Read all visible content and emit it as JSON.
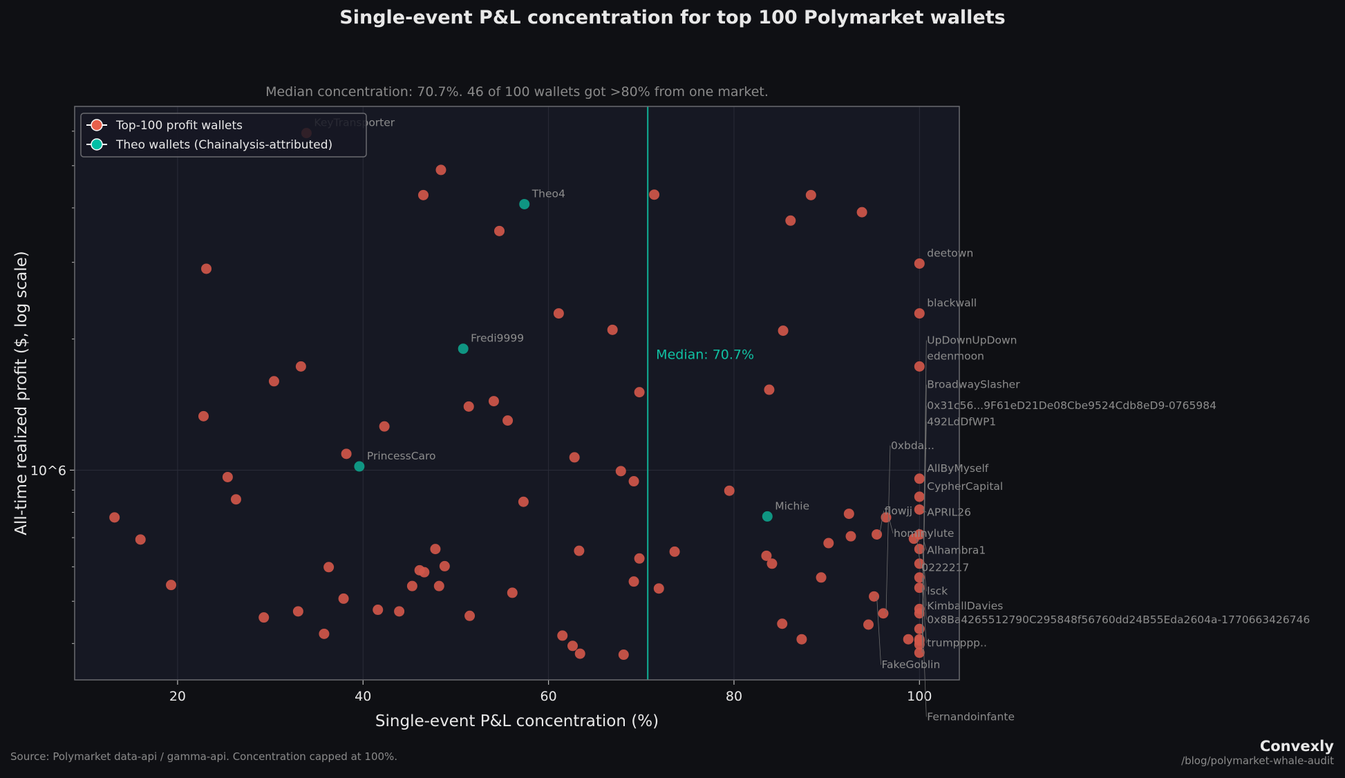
{
  "chart_data": {
    "type": "scatter",
    "title": "Single-event P&L concentration for top 100 Polymarket wallets",
    "subtitle": "Median concentration: 70.7%. 46 of 100 wallets got >80% from one market.",
    "xlabel": "Single-event P&L concentration (%)",
    "ylabel": "All-time realized profit ($, log scale)",
    "xlim": [
      8.9,
      104.3
    ],
    "ylim": [
      330000,
      6840000
    ],
    "yscale": "log",
    "x_ticks": [
      20,
      40,
      60,
      80,
      100
    ],
    "y_ticks": [
      {
        "value": 1000000,
        "label": "10^6"
      }
    ],
    "grid": true,
    "legend_position": "top-left",
    "median": {
      "value": 70.7,
      "label": "Median: 70.7%",
      "color": "#10a58e"
    },
    "colors": {
      "top100": "#d0574a",
      "theo": "#0fa18b",
      "background": "#0f1014",
      "axes_bg": "#161823"
    },
    "series": [
      {
        "name": "Top-100 profit wallets",
        "points": [
          {
            "x": 33.9,
            "y": 5940000,
            "label": "KeyTransporter"
          },
          {
            "x": 48.4,
            "y": 4890000
          },
          {
            "x": 46.5,
            "y": 4280000
          },
          {
            "x": 71.4,
            "y": 4290000
          },
          {
            "x": 88.3,
            "y": 4280000
          },
          {
            "x": 93.8,
            "y": 3910000
          },
          {
            "x": 86.1,
            "y": 3740000
          },
          {
            "x": 54.7,
            "y": 3540000
          },
          {
            "x": 23.1,
            "y": 2900000
          },
          {
            "x": 100,
            "y": 2980000,
            "label": "deetown"
          },
          {
            "x": 61.1,
            "y": 2290000
          },
          {
            "x": 66.9,
            "y": 2100000
          },
          {
            "x": 85.3,
            "y": 2090000
          },
          {
            "x": 100,
            "y": 2290000,
            "label": "blackwall"
          },
          {
            "x": 33.3,
            "y": 1730000
          },
          {
            "x": 30.4,
            "y": 1600000
          },
          {
            "x": 100,
            "y": 1730000,
            "label": "edenmoon"
          },
          {
            "x": 69.8,
            "y": 1510000
          },
          {
            "x": 83.8,
            "y": 1530000
          },
          {
            "x": 54.1,
            "y": 1440000
          },
          {
            "x": 51.4,
            "y": 1400000
          },
          {
            "x": 22.8,
            "y": 1330000
          },
          {
            "x": 55.6,
            "y": 1300000
          },
          {
            "x": 42.3,
            "y": 1260000
          },
          {
            "x": 38.2,
            "y": 1090000
          },
          {
            "x": 62.8,
            "y": 1070000
          },
          {
            "x": 67.8,
            "y": 995000
          },
          {
            "x": 69.2,
            "y": 943000
          },
          {
            "x": 25.4,
            "y": 964000
          },
          {
            "x": 79.5,
            "y": 897000
          },
          {
            "x": 100,
            "y": 956000,
            "label": "AllByMyself"
          },
          {
            "x": 26.3,
            "y": 857000
          },
          {
            "x": 57.3,
            "y": 846000
          },
          {
            "x": 100,
            "y": 869000,
            "label": "CypherCapital"
          },
          {
            "x": 100,
            "y": 812000,
            "label": "APRIL26"
          },
          {
            "x": 96.4,
            "y": 779000,
            "label": "hominylute"
          },
          {
            "x": 95.4,
            "y": 712000,
            "label": "flowjj"
          },
          {
            "x": 100,
            "y": 712000,
            "label": "Alhambra1"
          },
          {
            "x": 99.4,
            "y": 696000,
            "label": "0222217"
          },
          {
            "x": 100,
            "y": 659000,
            "label": "lsck"
          },
          {
            "x": 100,
            "y": 610000,
            "label": "KimballDavies"
          },
          {
            "x": 100,
            "y": 567000,
            "label": "0x8Ba4265512790C295848f56760dd24B55Eda2604a-1770663426746"
          },
          {
            "x": 100,
            "y": 537000,
            "label": "trumpppp.."
          },
          {
            "x": 95.1,
            "y": 513000,
            "label": "FakeGoblin"
          },
          {
            "x": 100,
            "y": 480000,
            "label": "Fernandoinfante"
          },
          {
            "x": 96.1,
            "y": 469000,
            "label": "0xbda..."
          },
          {
            "x": 100,
            "y": 469000
          },
          {
            "x": 100,
            "y": 432000,
            "label": "492LdDfWP1"
          },
          {
            "x": 100,
            "y": 409000,
            "label": "0x31c56...9F61eD21De08Cbe9524Cdb8eD9-0765984"
          },
          {
            "x": 100,
            "y": 398000,
            "label": "BroadwaySlasher"
          },
          {
            "x": 100,
            "y": 381000,
            "label": "UpDownUpDown"
          },
          {
            "x": 13.2,
            "y": 779000
          },
          {
            "x": 16.0,
            "y": 693000
          },
          {
            "x": 19.3,
            "y": 545000
          },
          {
            "x": 29.3,
            "y": 459000
          },
          {
            "x": 33.0,
            "y": 474000
          },
          {
            "x": 35.8,
            "y": 421000
          },
          {
            "x": 36.3,
            "y": 599000
          },
          {
            "x": 37.9,
            "y": 507000
          },
          {
            "x": 41.6,
            "y": 478000
          },
          {
            "x": 43.9,
            "y": 474000
          },
          {
            "x": 45.3,
            "y": 542000
          },
          {
            "x": 46.1,
            "y": 589000
          },
          {
            "x": 46.6,
            "y": 583000
          },
          {
            "x": 47.8,
            "y": 659000
          },
          {
            "x": 48.2,
            "y": 542000
          },
          {
            "x": 48.8,
            "y": 602000
          },
          {
            "x": 51.5,
            "y": 463000
          },
          {
            "x": 56.1,
            "y": 523000
          },
          {
            "x": 61.5,
            "y": 417000
          },
          {
            "x": 62.6,
            "y": 395000
          },
          {
            "x": 63.3,
            "y": 653000
          },
          {
            "x": 63.4,
            "y": 379000
          },
          {
            "x": 68.1,
            "y": 377000
          },
          {
            "x": 69.2,
            "y": 555000
          },
          {
            "x": 69.8,
            "y": 627000
          },
          {
            "x": 71.9,
            "y": 535000
          },
          {
            "x": 73.6,
            "y": 650000
          },
          {
            "x": 83.5,
            "y": 636000
          },
          {
            "x": 84.1,
            "y": 610000
          },
          {
            "x": 85.2,
            "y": 444000
          },
          {
            "x": 87.3,
            "y": 409000
          },
          {
            "x": 89.4,
            "y": 567000
          },
          {
            "x": 90.2,
            "y": 680000
          },
          {
            "x": 92.4,
            "y": 794000
          },
          {
            "x": 92.6,
            "y": 705000
          },
          {
            "x": 94.5,
            "y": 442000
          },
          {
            "x": 98.8,
            "y": 409000
          },
          {
            "x": 100,
            "y": 406000
          }
        ]
      },
      {
        "name": "Theo wallets (Chainalysis-attributed)",
        "points": [
          {
            "x": 57.4,
            "y": 4080000,
            "label": "Theo4"
          },
          {
            "x": 50.8,
            "y": 1900000,
            "label": "Fredi9999"
          },
          {
            "x": 39.6,
            "y": 1020000,
            "label": "PrincessCaro"
          },
          {
            "x": 83.6,
            "y": 783000,
            "label": "Michie"
          }
        ]
      }
    ]
  },
  "footer": {
    "source": "Source: Polymarket data-api / gamma-api. Concentration capped at 100%.",
    "brand": "Convexly",
    "url": "/blog/polymarket-whale-audit"
  }
}
